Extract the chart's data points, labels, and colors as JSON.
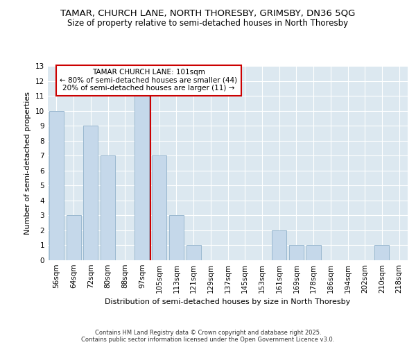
{
  "title": "TAMAR, CHURCH LANE, NORTH THORESBY, GRIMSBY, DN36 5QG",
  "subtitle": "Size of property relative to semi-detached houses in North Thoresby",
  "xlabel": "Distribution of semi-detached houses by size in North Thoresby",
  "ylabel": "Number of semi-detached properties",
  "footer_line1": "Contains HM Land Registry data © Crown copyright and database right 2025.",
  "footer_line2": "Contains public sector information licensed under the Open Government Licence v3.0.",
  "categories": [
    "56sqm",
    "64sqm",
    "72sqm",
    "80sqm",
    "88sqm",
    "97sqm",
    "105sqm",
    "113sqm",
    "121sqm",
    "129sqm",
    "137sqm",
    "145sqm",
    "153sqm",
    "161sqm",
    "169sqm",
    "178sqm",
    "186sqm",
    "194sqm",
    "202sqm",
    "210sqm",
    "218sqm"
  ],
  "values": [
    10,
    3,
    9,
    7,
    0,
    11,
    7,
    3,
    1,
    0,
    0,
    0,
    0,
    2,
    1,
    1,
    0,
    0,
    0,
    1,
    0
  ],
  "bar_color": "#c5d8ea",
  "bar_edge_color": "#9ab8d0",
  "vline_x": 5.5,
  "vline_label": "TAMAR CHURCH LANE: 101sqm",
  "annotation_smaller": "← 80% of semi-detached houses are smaller (44)",
  "annotation_larger": "20% of semi-detached houses are larger (11) →",
  "annotation_box_color": "#ffffff",
  "annotation_box_edge": "#cc0000",
  "vline_color": "#cc0000",
  "ylim": [
    0,
    13
  ],
  "yticks": [
    0,
    1,
    2,
    3,
    4,
    5,
    6,
    7,
    8,
    9,
    10,
    11,
    12,
    13
  ],
  "plot_bg_color": "#dce8f0",
  "figure_bg_color": "#ffffff",
  "grid_color": "#ffffff",
  "title_fontsize": 9.5,
  "subtitle_fontsize": 8.5,
  "axis_label_fontsize": 8,
  "tick_fontsize": 7.5
}
